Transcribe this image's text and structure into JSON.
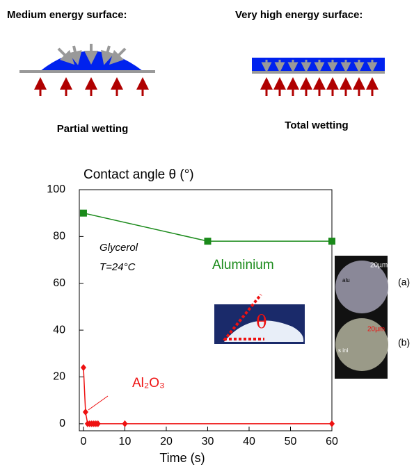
{
  "diagrams": [
    {
      "title": "Medium energy surface:",
      "caption": "Partial wetting"
    },
    {
      "title": "Very high energy surface:",
      "caption": "Total wetting"
    }
  ],
  "chart_data": {
    "type": "line",
    "title": "Contact angle θ (°)",
    "x_label": "Time (s)",
    "xlim": [
      -1,
      60
    ],
    "ylim": [
      -3,
      100
    ],
    "xticks": [
      0,
      10,
      20,
      30,
      40,
      50,
      60
    ],
    "yticks": [
      0,
      20,
      40,
      60,
      80,
      100
    ],
    "annotations": [
      "Glycerol",
      "T=24°C"
    ],
    "inset_label": "θ",
    "images": [
      {
        "label": "(a)",
        "scale": "20µm",
        "text": "alu"
      },
      {
        "label": "(b)",
        "scale": "20µm",
        "text": "s ini"
      }
    ],
    "series": [
      {
        "name": "Aluminium",
        "color": "#1a8a1a",
        "marker": "square",
        "x": [
          0,
          30,
          60
        ],
        "values": [
          90,
          78,
          78
        ]
      },
      {
        "name": "Al₂O₃",
        "color": "#ee1111",
        "marker": "diamond",
        "x": [
          0,
          0.5,
          1,
          1.5,
          2,
          2.5,
          3,
          3.5,
          10,
          60
        ],
        "values": [
          24,
          5,
          0,
          0,
          0,
          0,
          0,
          0,
          0,
          0
        ]
      }
    ]
  }
}
